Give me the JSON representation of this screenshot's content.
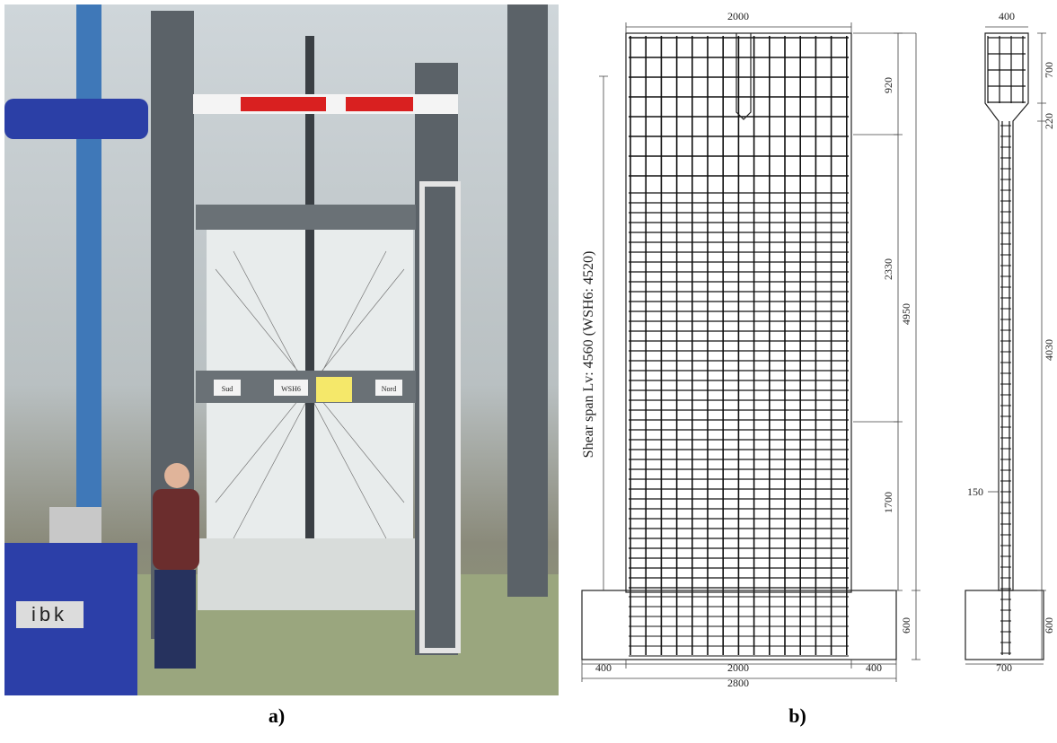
{
  "panel_a": {
    "caption": "a)",
    "labels": {
      "south": "Sud",
      "specimen": "WSH6",
      "north": "Nord",
      "logo": "ibk"
    }
  },
  "panel_b": {
    "caption": "b)",
    "elevation": {
      "top_width": "2000",
      "top_zone": "920",
      "middle_zone": "2330",
      "bottom_zone": "1700",
      "total_height": "4950",
      "foundation_height": "600",
      "left_overhang": "400",
      "bottom_width": "2000",
      "right_overhang": "400",
      "foundation_length": "2800",
      "shear_span": "Shear span Lv: 4560 (WSH6: 4520)"
    },
    "section": {
      "flange_width": "400",
      "flange_height": "700",
      "transition": "220",
      "web_height": "4030",
      "web_thickness": "150",
      "foundation_height": "600",
      "foundation_width": "700"
    }
  }
}
